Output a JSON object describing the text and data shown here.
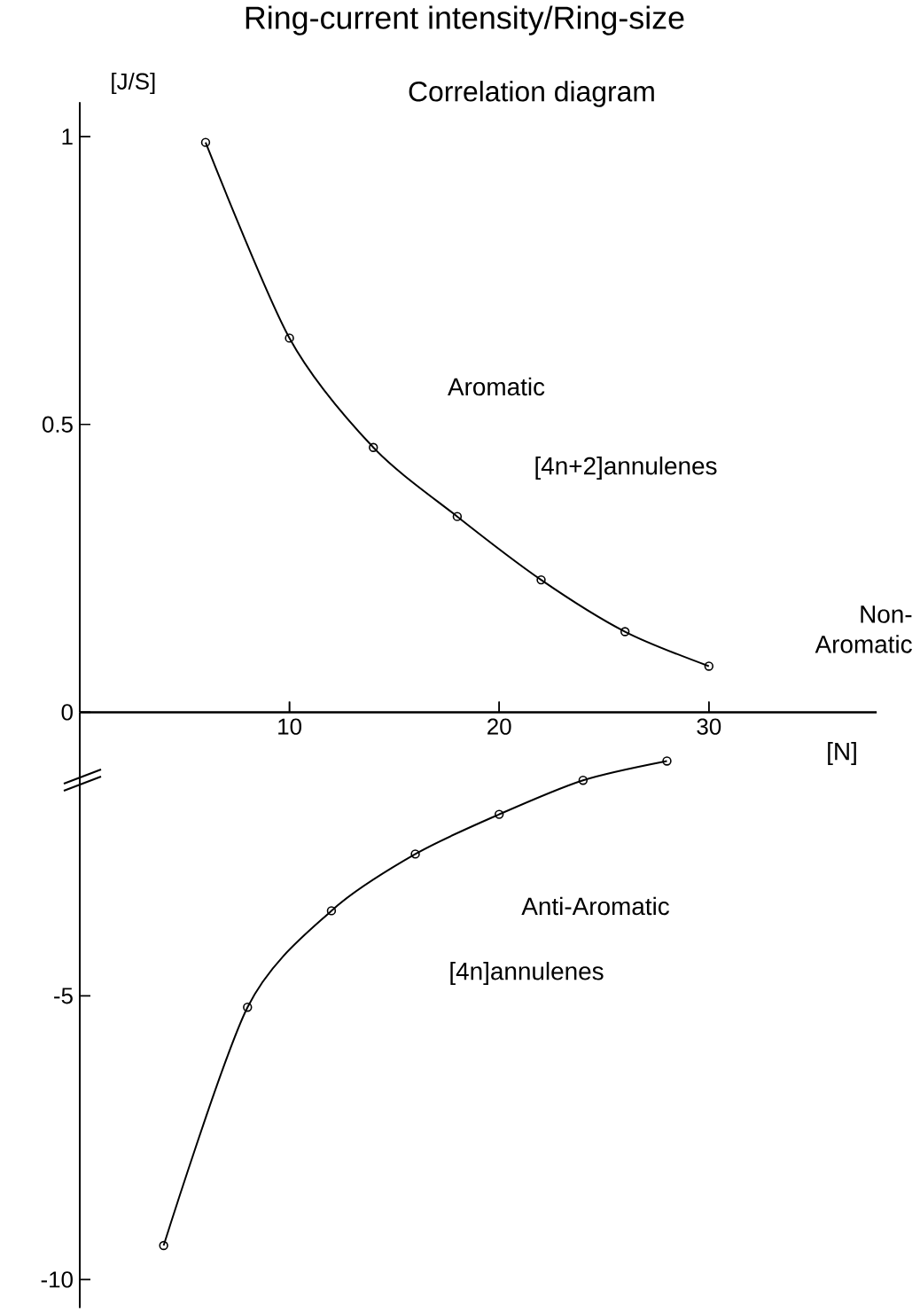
{
  "chart_data": [
    {
      "type": "line",
      "title": "Ring-current intensity/Ring-size",
      "subtitle": "Correlation diagram",
      "ylabel": "[J/S]",
      "xlabel": "[N]",
      "xlim": [
        0,
        38
      ],
      "xticks": [
        10,
        20,
        30
      ],
      "ylim": [
        0,
        1.06
      ],
      "yticks": [
        0,
        0.5,
        1
      ],
      "marker": "circle",
      "line_style": "solid",
      "series": [
        {
          "color": "#000000",
          "x": [
            6,
            10,
            14,
            18,
            22,
            26,
            30
          ],
          "values": [
            0.99,
            0.65,
            0.46,
            0.34,
            0.23,
            0.14,
            0.08
          ]
        }
      ],
      "annotations": [
        "Aromatic",
        "[4n+2]annulenes",
        "Non-Aromatic"
      ]
    },
    {
      "type": "line",
      "xlim": [
        0,
        38
      ],
      "xticks": [
        10,
        20,
        30
      ],
      "ylim": [
        -10.5,
        0
      ],
      "yticks": [
        -5,
        -10
      ],
      "tick_labels": "y",
      "marker": "circle",
      "line_style": "solid",
      "series": [
        {
          "color": "#000000",
          "x": [
            4,
            8,
            12,
            16,
            20,
            24,
            28
          ],
          "values": [
            -9.4,
            -5.2,
            -3.5,
            -2.5,
            -1.8,
            -1.2,
            -0.86
          ]
        }
      ],
      "annotations": [
        "Anti-Aromatic",
        "[4n]annulenes"
      ]
    }
  ]
}
